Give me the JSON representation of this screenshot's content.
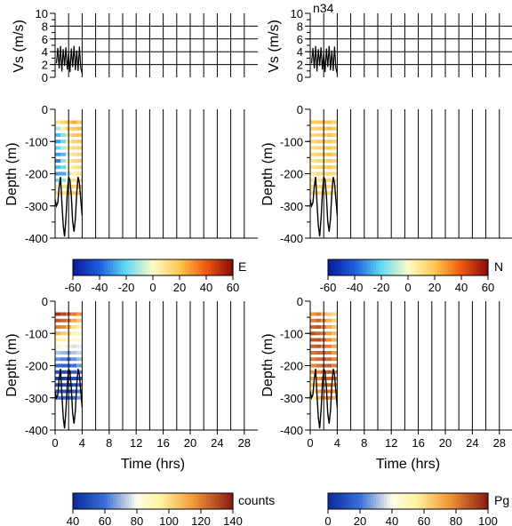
{
  "figure_label": "n34",
  "chart_data": [
    {
      "id": "vs-left",
      "type": "line",
      "ylabel": "Vs (m/s)",
      "ylim": [
        0,
        10
      ],
      "yticks": [
        0,
        2,
        4,
        6,
        8,
        10
      ],
      "xlim": [
        0,
        30
      ],
      "grid": true,
      "series": [
        {
          "x": [
            0.2,
            0.4,
            0.6,
            0.8,
            1.0,
            1.2,
            1.4,
            1.6,
            1.8,
            2.0,
            2.2,
            2.4,
            2.6,
            2.8,
            3.0,
            3.2,
            3.4,
            3.6,
            3.8,
            4.0
          ],
          "y": [
            2.2,
            4.6,
            1.4,
            4.9,
            0.9,
            4.4,
            1.8,
            4.7,
            1.2,
            3.8,
            0.8,
            4.5,
            1.6,
            4.9,
            1.1,
            4.2,
            1.0,
            4.8,
            1.4,
            0.6
          ]
        }
      ]
    },
    {
      "id": "vs-right",
      "type": "line",
      "ylabel": "Vs (m/s)",
      "ylim": [
        0,
        10
      ],
      "yticks": [
        0,
        2,
        4,
        6,
        8,
        10
      ],
      "xlim": [
        0,
        30
      ],
      "grid": true,
      "series": [
        {
          "x": [
            0.2,
            0.4,
            0.6,
            0.8,
            1.0,
            1.2,
            1.4,
            1.6,
            1.8,
            2.0,
            2.2,
            2.4,
            2.6,
            2.8,
            3.0,
            3.2,
            3.4,
            3.6,
            3.8,
            4.0
          ],
          "y": [
            2.2,
            4.6,
            1.4,
            4.9,
            0.9,
            4.4,
            1.8,
            4.7,
            1.2,
            3.8,
            0.8,
            4.5,
            1.6,
            4.9,
            1.1,
            4.2,
            1.0,
            4.8,
            1.4,
            0.6
          ]
        }
      ]
    },
    {
      "id": "depth-E",
      "type": "heatmap",
      "ylabel": "Depth (m)",
      "ylim": [
        -400,
        0
      ],
      "yticks": [
        0,
        -100,
        -200,
        -300,
        -400
      ],
      "xlim": [
        0,
        30
      ],
      "colorbar_label": "E",
      "colorbar_ticks": [
        -60,
        -40,
        -20,
        0,
        20,
        40,
        60
      ],
      "vmin": -60,
      "vmax": 60,
      "times": [
        0.4,
        1.2,
        2.0,
        2.8,
        3.6
      ],
      "depths": [
        -40,
        -60,
        -80,
        -100,
        -120,
        -140,
        -160,
        -180,
        -200,
        -220,
        -240,
        -260
      ],
      "values": [
        [
          10,
          15,
          20,
          25,
          18
        ],
        [
          -10,
          5,
          15,
          20,
          22
        ],
        [
          -25,
          -15,
          10,
          18,
          20
        ],
        [
          -30,
          -20,
          5,
          15,
          18
        ],
        [
          -20,
          -10,
          8,
          12,
          16
        ],
        [
          -30,
          -25,
          -5,
          10,
          14
        ],
        [
          -35,
          -15,
          5,
          12,
          15
        ],
        [
          -25,
          -20,
          0,
          8,
          12
        ],
        [
          -30,
          -28,
          -10,
          5,
          10
        ],
        [
          -20,
          -15,
          2,
          10,
          14
        ],
        [
          5,
          10,
          12,
          15,
          18
        ],
        [
          10,
          12,
          15,
          18,
          20
        ]
      ]
    },
    {
      "id": "depth-N",
      "type": "heatmap",
      "ylabel": "Depth (m)",
      "ylim": [
        -400,
        0
      ],
      "yticks": [
        0,
        -100,
        -200,
        -300,
        -400
      ],
      "xlim": [
        0,
        30
      ],
      "colorbar_label": "N",
      "colorbar_ticks": [
        -60,
        -40,
        -20,
        0,
        20,
        40,
        60
      ],
      "vmin": -60,
      "vmax": 60,
      "times": [
        0.4,
        1.2,
        2.0,
        2.8,
        3.6
      ],
      "depths": [
        -40,
        -60,
        -80,
        -100,
        -120,
        -140,
        -160,
        -180,
        -200,
        -220,
        -240,
        -260
      ],
      "values": [
        [
          18,
          20,
          22,
          20,
          15
        ],
        [
          15,
          18,
          20,
          22,
          18
        ],
        [
          12,
          15,
          18,
          20,
          16
        ],
        [
          14,
          18,
          20,
          18,
          15
        ],
        [
          10,
          14,
          18,
          20,
          16
        ],
        [
          12,
          16,
          20,
          22,
          18
        ],
        [
          8,
          12,
          16,
          18,
          14
        ],
        [
          10,
          14,
          18,
          20,
          15
        ],
        [
          6,
          12,
          14,
          16,
          12
        ],
        [
          8,
          10,
          14,
          16,
          12
        ],
        [
          10,
          12,
          14,
          12,
          10
        ],
        [
          12,
          14,
          16,
          14,
          12
        ]
      ]
    },
    {
      "id": "depth-counts",
      "type": "heatmap",
      "ylabel": "Depth (m)",
      "xlabel": "Time (hrs)",
      "ylim": [
        -400,
        0
      ],
      "yticks": [
        0,
        -100,
        -200,
        -300,
        -400
      ],
      "xlim": [
        0,
        30
      ],
      "xticks": [
        0,
        4,
        8,
        12,
        16,
        20,
        24,
        28
      ],
      "colorbar_label": "counts",
      "colorbar_ticks": [
        40,
        60,
        80,
        100,
        120,
        140
      ],
      "vmin": 40,
      "vmax": 140,
      "times": [
        0.4,
        1.2,
        2.0,
        2.8,
        3.6
      ],
      "depths": [
        -40,
        -60,
        -80,
        -100,
        -120,
        -140,
        -160,
        -180,
        -200,
        -220,
        -240,
        -260,
        -280,
        -300
      ],
      "values": [
        [
          135,
          130,
          125,
          120,
          115
        ],
        [
          128,
          125,
          120,
          112,
          105
        ],
        [
          120,
          118,
          110,
          100,
          95
        ],
        [
          110,
          105,
          100,
          92,
          88
        ],
        [
          95,
          92,
          88,
          84,
          82
        ],
        [
          85,
          80,
          78,
          76,
          78
        ],
        [
          72,
          70,
          68,
          72,
          75
        ],
        [
          65,
          62,
          60,
          64,
          70
        ],
        [
          58,
          55,
          55,
          60,
          66
        ],
        [
          52,
          50,
          48,
          55,
          62
        ],
        [
          48,
          46,
          45,
          50,
          58
        ],
        [
          50,
          48,
          46,
          52,
          60
        ],
        [
          55,
          52,
          50,
          56,
          62
        ],
        [
          60,
          58,
          55,
          60,
          66
        ]
      ]
    },
    {
      "id": "depth-Pg",
      "type": "heatmap",
      "ylabel": "Depth (m)",
      "xlabel": "Time (hrs)",
      "ylim": [
        -400,
        0
      ],
      "yticks": [
        0,
        -100,
        -200,
        -300,
        -400
      ],
      "xlim": [
        0,
        30
      ],
      "xticks": [
        0,
        4,
        8,
        12,
        16,
        20,
        24,
        28
      ],
      "colorbar_label": "Pg",
      "colorbar_ticks": [
        0,
        20,
        40,
        60,
        80,
        100
      ],
      "vmin": 0,
      "vmax": 100,
      "times": [
        0.4,
        1.2,
        2.0,
        2.8,
        3.6
      ],
      "depths": [
        -40,
        -60,
        -80,
        -100,
        -120,
        -140,
        -160,
        -180,
        -200,
        -220,
        -240,
        -260,
        -280,
        -300
      ],
      "values": [
        [
          75,
          80,
          70,
          65,
          60
        ],
        [
          80,
          85,
          78,
          70,
          62
        ],
        [
          85,
          88,
          80,
          72,
          65
        ],
        [
          90,
          85,
          82,
          75,
          68
        ],
        [
          88,
          90,
          85,
          78,
          70
        ],
        [
          85,
          88,
          82,
          80,
          72
        ],
        [
          82,
          85,
          86,
          82,
          75
        ],
        [
          80,
          84,
          88,
          85,
          78
        ],
        [
          78,
          82,
          86,
          88,
          80
        ],
        [
          75,
          80,
          85,
          88,
          82
        ],
        [
          70,
          78,
          84,
          86,
          80
        ],
        [
          65,
          75,
          82,
          85,
          78
        ],
        [
          60,
          72,
          80,
          82,
          75
        ],
        [
          55,
          68,
          76,
          80,
          72
        ]
      ]
    }
  ],
  "overlay_curve": {
    "times": [
      0.0,
      0.2,
      0.4,
      0.6,
      0.8,
      1.0,
      1.2,
      1.4,
      1.6,
      1.8,
      2.0,
      2.2,
      2.4,
      2.6,
      2.8,
      3.0,
      3.2,
      3.4,
      3.6,
      3.8,
      4.0
    ],
    "depths": [
      -280,
      -300,
      -290,
      -240,
      -210,
      -290,
      -360,
      -395,
      -340,
      -260,
      -210,
      -220,
      -270,
      -350,
      -380,
      -340,
      -260,
      -210,
      -230,
      -280,
      -330
    ]
  }
}
